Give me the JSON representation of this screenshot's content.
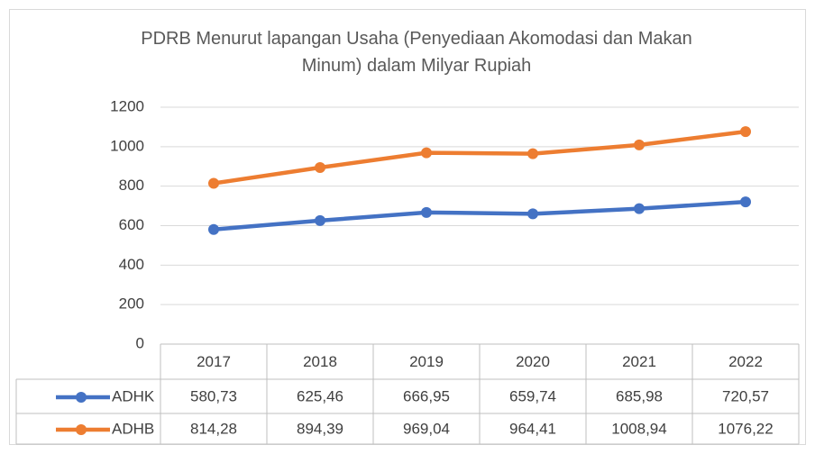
{
  "chart_data": {
    "type": "line",
    "title": "PDRB Menurut lapangan Usaha (Penyediaan Akomodasi dan Makan Minum) dalam Milyar Rupiah",
    "categories": [
      "2017",
      "2018",
      "2019",
      "2020",
      "2021",
      "2022"
    ],
    "series": [
      {
        "name": "ADHK",
        "color": "#4472c4",
        "values": [
          580.73,
          625.46,
          666.95,
          659.74,
          685.98,
          720.57
        ],
        "value_labels": [
          "580,73",
          "625,46",
          "666,95",
          "659,74",
          "685,98",
          "720,57"
        ]
      },
      {
        "name": "ADHB",
        "color": "#ed7d31",
        "values": [
          814.28,
          894.39,
          969.04,
          964.41,
          1008.94,
          1076.22
        ],
        "value_labels": [
          "814,28",
          "894,39",
          "969,04",
          "964,41",
          "1008,94",
          "1076,22"
        ]
      }
    ],
    "ylim": [
      0,
      1200
    ],
    "yticks": [
      0,
      200,
      400,
      600,
      800,
      1000,
      1200
    ],
    "grid": true
  }
}
